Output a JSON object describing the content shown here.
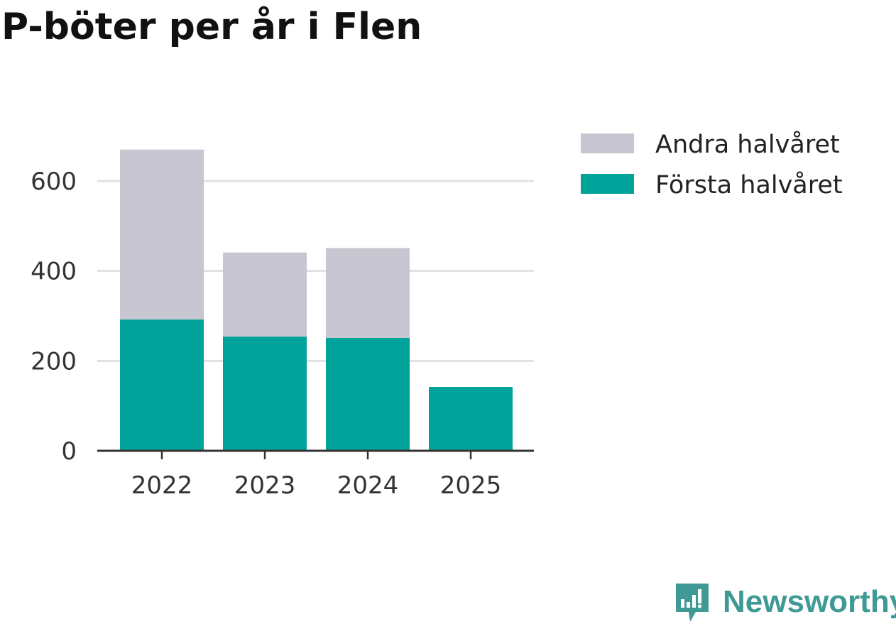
{
  "title": "P-böter per år i Flen",
  "chart_data": {
    "type": "bar",
    "stacked": true,
    "title": "P-böter per år i Flen",
    "xlabel": "",
    "ylabel": "",
    "categories": [
      "2022",
      "2023",
      "2024",
      "2025"
    ],
    "series": [
      {
        "name": "Första halvåret",
        "color": "#00a39a",
        "values": [
          292,
          254,
          251,
          142
        ]
      },
      {
        "name": "Andra halvåret",
        "color": "#c8c7d1",
        "values": [
          378,
          187,
          200,
          0
        ]
      }
    ],
    "ylim": [
      0,
      700
    ],
    "yticks": [
      "0",
      "200",
      "400",
      "600"
    ],
    "grid": true,
    "legend": [
      {
        "label": "Andra halvåret",
        "color": "#c8c7d1"
      },
      {
        "label": "Första halvåret",
        "color": "#00a39a"
      }
    ],
    "legend_position": "top-right"
  },
  "logo": {
    "text": "Newsworthy",
    "icon": "newsworthy-logo-icon",
    "color": "#3f9a96"
  }
}
